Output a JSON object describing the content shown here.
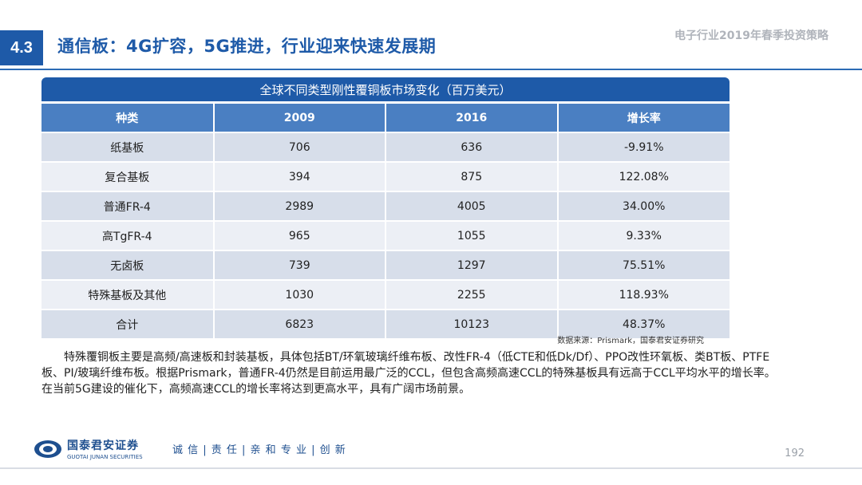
{
  "header": {
    "section_number": "4.3",
    "title": "通信板：4G扩容，5G推进，行业迎来快速发展期",
    "report_title": "电子行业2019年春季投资策略"
  },
  "table": {
    "caption": "全球不同类型刚性覆铜板市场变化（百万美元）",
    "columns": [
      "种类",
      "2009",
      "2016",
      "增长率"
    ],
    "rows": [
      [
        "纸基板",
        "706",
        "636",
        "-9.91%"
      ],
      [
        "复合基板",
        "394",
        "875",
        "122.08%"
      ],
      [
        "普通FR-4",
        "2989",
        "4005",
        "34.00%"
      ],
      [
        "高TgFR-4",
        "965",
        "1055",
        "9.33%"
      ],
      [
        "无卤板",
        "739",
        "1297",
        "75.51%"
      ],
      [
        "特殊基板及其他",
        "1030",
        "2255",
        "118.93%"
      ],
      [
        "合计",
        "6823",
        "10123",
        "48.37%"
      ]
    ],
    "source": "数据来源：Prismark，国泰君安证券研究"
  },
  "body": {
    "paragraph": "特殊覆铜板主要是高频/高速板和封装基板，具体包括BT/环氧玻璃纤维布板、改性FR-4（低CTE和低Dk/Df）、PPO改性环氧板、类BT板、PTFE 板、PI/玻璃纤维布板。根据Prismark，普通FR-4仍然是目前运用最广泛的CCL，但包含高频高速CCL的特殊基板具有远高于CCL平均水平的增长率。在当前5G建设的催化下，高频高速CCL的增长率将达到更高水平，具有广阔市场前景。"
  },
  "footer": {
    "logo_cn": "国泰君安证券",
    "logo_en": "GUOTAI JUNAN SECURITIES",
    "slogan": "诚 信 | 责 任 | 亲 和   专 业 | 创 新",
    "page_number": "192"
  },
  "colors": {
    "brand_blue": "#1e5aa8",
    "header_blue": "#4a7fc2",
    "row_odd": "#d7deea",
    "row_even": "#eceff5"
  }
}
